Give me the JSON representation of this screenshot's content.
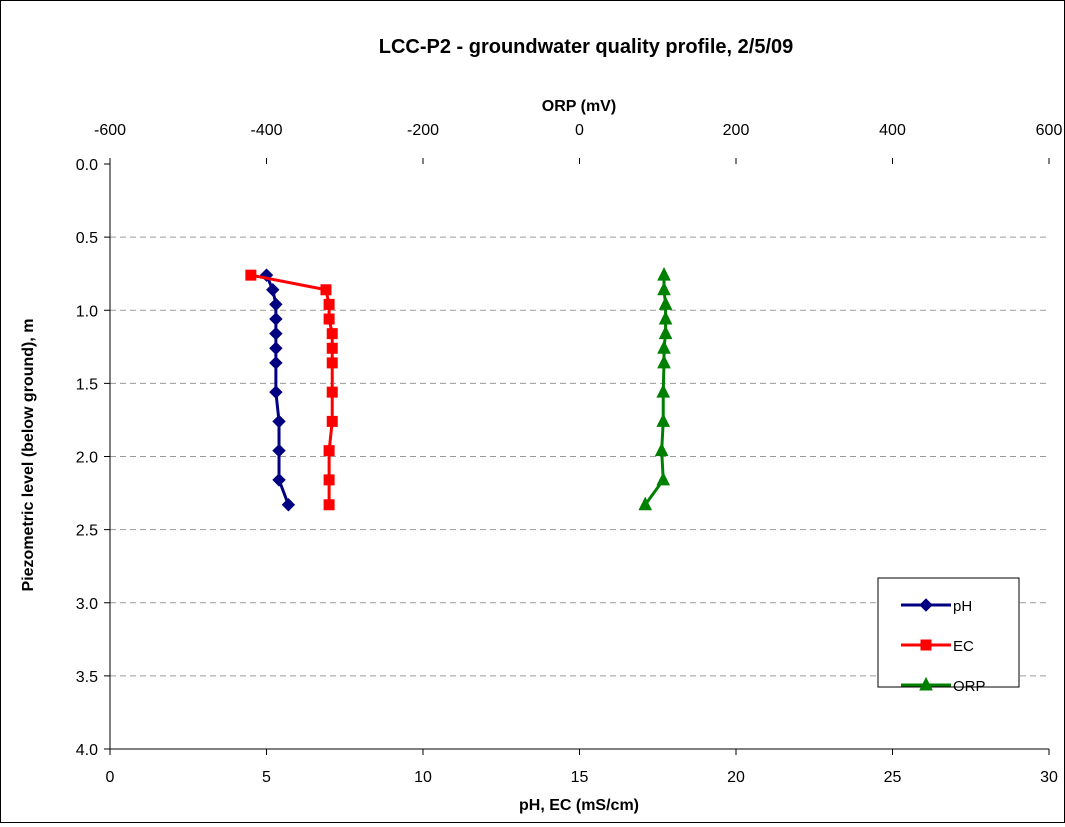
{
  "chart_data": {
    "type": "line",
    "title": "LCC-P2 - groundwater quality profile, 2/5/09",
    "ylabel": "Piezometric level (below ground), m",
    "xlabel_bottom": "pH, EC (mS/cm)",
    "xlabel_top": "ORP (mV)",
    "ylim": [
      0,
      4
    ],
    "y_inverted": true,
    "xlim_bottom": [
      0,
      30
    ],
    "xlim_top": [
      -600,
      600
    ],
    "y_ticks": [
      "0.0",
      "0.5",
      "1.0",
      "1.5",
      "2.0",
      "2.5",
      "3.0",
      "3.5",
      "4.0"
    ],
    "x_ticks_bottom": [
      "0",
      "5",
      "10",
      "15",
      "20",
      "25",
      "30"
    ],
    "x_ticks_top": [
      "-600",
      "-400",
      "-200",
      "0",
      "200",
      "400",
      "600"
    ],
    "grid": "horizontal dashed",
    "legend": "bottom-right",
    "series": [
      {
        "name": "pH",
        "axis": "bottom",
        "color": "#000080",
        "marker": "diamond",
        "points": [
          {
            "x": 5.0,
            "y": 0.76
          },
          {
            "x": 5.2,
            "y": 0.86
          },
          {
            "x": 5.3,
            "y": 0.96
          },
          {
            "x": 5.3,
            "y": 1.06
          },
          {
            "x": 5.3,
            "y": 1.16
          },
          {
            "x": 5.3,
            "y": 1.26
          },
          {
            "x": 5.3,
            "y": 1.36
          },
          {
            "x": 5.3,
            "y": 1.56
          },
          {
            "x": 5.4,
            "y": 1.76
          },
          {
            "x": 5.4,
            "y": 1.96
          },
          {
            "x": 5.4,
            "y": 2.16
          },
          {
            "x": 5.7,
            "y": 2.33
          }
        ]
      },
      {
        "name": "EC",
        "axis": "bottom",
        "color": "#ff0000",
        "marker": "square",
        "points": [
          {
            "x": 4.5,
            "y": 0.76
          },
          {
            "x": 6.9,
            "y": 0.86
          },
          {
            "x": 7.0,
            "y": 0.96
          },
          {
            "x": 7.0,
            "y": 1.06
          },
          {
            "x": 7.1,
            "y": 1.16
          },
          {
            "x": 7.1,
            "y": 1.26
          },
          {
            "x": 7.1,
            "y": 1.36
          },
          {
            "x": 7.1,
            "y": 1.56
          },
          {
            "x": 7.1,
            "y": 1.76
          },
          {
            "x": 7.0,
            "y": 1.96
          },
          {
            "x": 7.0,
            "y": 2.16
          },
          {
            "x": 7.0,
            "y": 2.33
          }
        ]
      },
      {
        "name": "ORP",
        "axis": "top",
        "color": "#008000",
        "marker": "triangle",
        "points": [
          {
            "x": 108,
            "y": 0.76
          },
          {
            "x": 108,
            "y": 0.86
          },
          {
            "x": 110,
            "y": 0.96
          },
          {
            "x": 110,
            "y": 1.06
          },
          {
            "x": 110,
            "y": 1.16
          },
          {
            "x": 108,
            "y": 1.26
          },
          {
            "x": 108,
            "y": 1.36
          },
          {
            "x": 107,
            "y": 1.56
          },
          {
            "x": 107,
            "y": 1.76
          },
          {
            "x": 105,
            "y": 1.96
          },
          {
            "x": 107,
            "y": 2.16
          },
          {
            "x": 84,
            "y": 2.33
          }
        ]
      }
    ]
  }
}
